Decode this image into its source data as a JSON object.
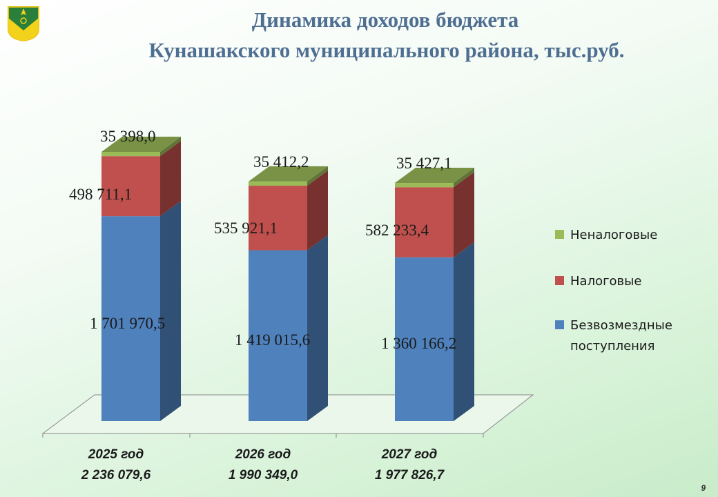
{
  "title_line1": "Динамика доходов бюджета",
  "title_line2": "Кунашакского муниципального района, тыс.руб.",
  "page_number": "9",
  "chart_data": {
    "type": "bar",
    "stacked": true,
    "categories": [
      "2025 год",
      "2026 год",
      "2027 год"
    ],
    "category_totals": [
      "2 236 079,6",
      "1 990 349,0",
      "1 977 826,7"
    ],
    "series": [
      {
        "name": "Безвозмездные поступления",
        "legend_lines": [
          "Безвозмездные",
          "поступления"
        ],
        "color": "#4f81bd",
        "values": [
          1701970.5,
          1419015.6,
          1360166.2
        ],
        "labels": [
          "1 701 970,5",
          "1 419 015,6",
          "1 360 166,2"
        ]
      },
      {
        "name": "Налоговые",
        "legend_lines": [
          "Налоговые"
        ],
        "color": "#c0504d",
        "values": [
          498711.1,
          535921.1,
          582233.4
        ],
        "labels": [
          "498 711,1",
          "535 921,1",
          "582 233,4"
        ]
      },
      {
        "name": "Неналоговые",
        "legend_lines": [
          "Неналоговые"
        ],
        "color": "#9bbb59",
        "values": [
          35398.0,
          35412.2,
          35427.1
        ],
        "labels": [
          "35 398,0",
          "35 412,2",
          "35 427,1"
        ]
      }
    ],
    "legend_position": "right",
    "grid": false
  }
}
